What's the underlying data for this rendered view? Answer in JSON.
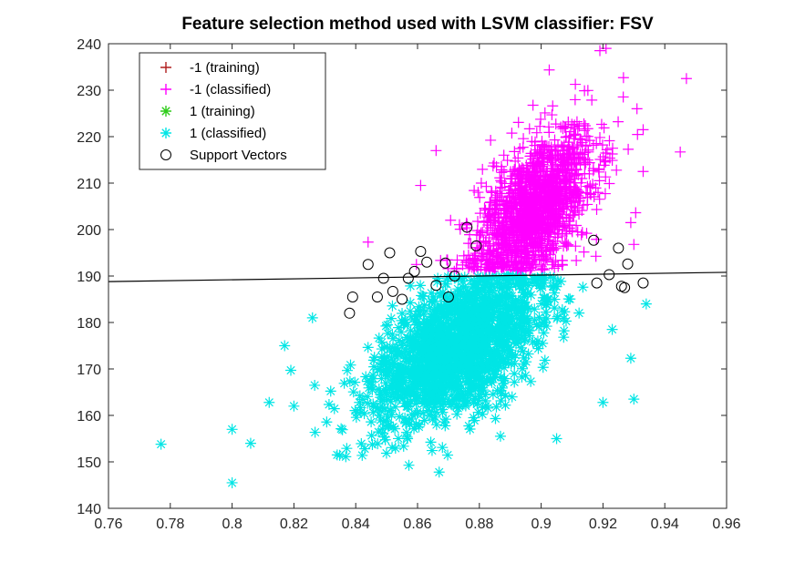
{
  "chart_data": {
    "type": "scatter",
    "title": "Feature selection method used with LSVM classifier: FSV",
    "xlabel": "",
    "ylabel": "",
    "xlim": [
      0.76,
      0.96
    ],
    "ylim": [
      140,
      240
    ],
    "x_ticks": [
      0.76,
      0.78,
      0.8,
      0.82,
      0.84,
      0.86,
      0.88,
      0.9,
      0.92,
      0.94,
      0.96
    ],
    "x_tick_labels": [
      "0.76",
      "0.78",
      "0.8",
      "0.82",
      "0.84",
      "0.86",
      "0.88",
      "0.9",
      "0.92",
      "0.94",
      "0.96"
    ],
    "y_ticks": [
      140,
      150,
      160,
      170,
      180,
      190,
      200,
      210,
      220,
      230,
      240
    ],
    "y_tick_labels": [
      "140",
      "150",
      "160",
      "170",
      "180",
      "190",
      "200",
      "210",
      "220",
      "230",
      "240"
    ],
    "grid": false,
    "legend": {
      "position": "top-left",
      "entries": [
        {
          "label": "-1 (training)",
          "marker": "plus",
          "color": "#b01e1e"
        },
        {
          "label": "-1 (classified)",
          "marker": "plus",
          "color": "#ff00ff"
        },
        {
          "label": "1 (training)",
          "marker": "asterisk",
          "color": "#2ecc1a"
        },
        {
          "label": "1 (classified)",
          "marker": "asterisk",
          "color": "#00e5e5"
        },
        {
          "label": "Support Vectors",
          "marker": "circle",
          "color": "#000000"
        }
      ]
    },
    "decision_boundary": {
      "x": [
        0.76,
        0.96
      ],
      "y": [
        188.8,
        190.8
      ]
    },
    "series": [
      {
        "name": "-1 (classified)",
        "marker": "plus",
        "color": "#ff00ff",
        "distribution": {
          "mean_x": 0.898,
          "mean_y": 205,
          "sd_x": 0.0095,
          "sd_y": 8.5,
          "corr": 0.55,
          "count": 1600,
          "min_y": 191
        },
        "points": [
          [
            0.947,
            232.5
          ],
          [
            0.945,
            216.7
          ],
          [
            0.919,
            238.5
          ],
          [
            0.921,
            239
          ],
          [
            0.844,
            197.3
          ],
          [
            0.933,
            221.5
          ],
          [
            0.931,
            226
          ],
          [
            0.929,
            201.5
          ],
          [
            0.93,
            196.8
          ],
          [
            0.933,
            212.5
          ],
          [
            0.866,
            217
          ],
          [
            0.861,
            209.5
          ]
        ]
      },
      {
        "name": "1 (classified)",
        "marker": "asterisk",
        "color": "#00e5e5",
        "distribution": {
          "mean_x": 0.873,
          "mean_y": 174.5,
          "sd_x": 0.0135,
          "sd_y": 8,
          "corr": 0.55,
          "count": 1800,
          "max_y": 190
        },
        "points": [
          [
            0.777,
            153.8
          ],
          [
            0.8,
            145.5
          ],
          [
            0.8,
            157
          ],
          [
            0.806,
            154
          ],
          [
            0.812,
            162.8
          ],
          [
            0.817,
            175
          ],
          [
            0.819,
            169.7
          ],
          [
            0.826,
            181
          ],
          [
            0.834,
            151.5
          ],
          [
            0.867,
            147.8
          ],
          [
            0.934,
            184
          ],
          [
            0.93,
            163.5
          ],
          [
            0.92,
            162.8
          ],
          [
            0.929,
            172.3
          ],
          [
            0.905,
            155
          ],
          [
            0.923,
            178.5
          ],
          [
            0.82,
            162
          ]
        ]
      },
      {
        "name": "Support Vectors",
        "marker": "circle",
        "color": "#000000",
        "points": [
          [
            0.838,
            182
          ],
          [
            0.839,
            185.5
          ],
          [
            0.844,
            192.5
          ],
          [
            0.851,
            195
          ],
          [
            0.847,
            185.5
          ],
          [
            0.849,
            189.5
          ],
          [
            0.852,
            186.7
          ],
          [
            0.855,
            185
          ],
          [
            0.857,
            189.5
          ],
          [
            0.859,
            191
          ],
          [
            0.861,
            195.3
          ],
          [
            0.863,
            193
          ],
          [
            0.869,
            192.8
          ],
          [
            0.876,
            200.5
          ],
          [
            0.879,
            196.5
          ],
          [
            0.87,
            185.5
          ],
          [
            0.918,
            188.5
          ],
          [
            0.922,
            190.3
          ],
          [
            0.925,
            196
          ],
          [
            0.926,
            187.8
          ],
          [
            0.927,
            187.5
          ],
          [
            0.928,
            192.6
          ],
          [
            0.933,
            188.5
          ],
          [
            0.917,
            197.7
          ],
          [
            0.872,
            190
          ],
          [
            0.866,
            188
          ]
        ]
      }
    ]
  }
}
